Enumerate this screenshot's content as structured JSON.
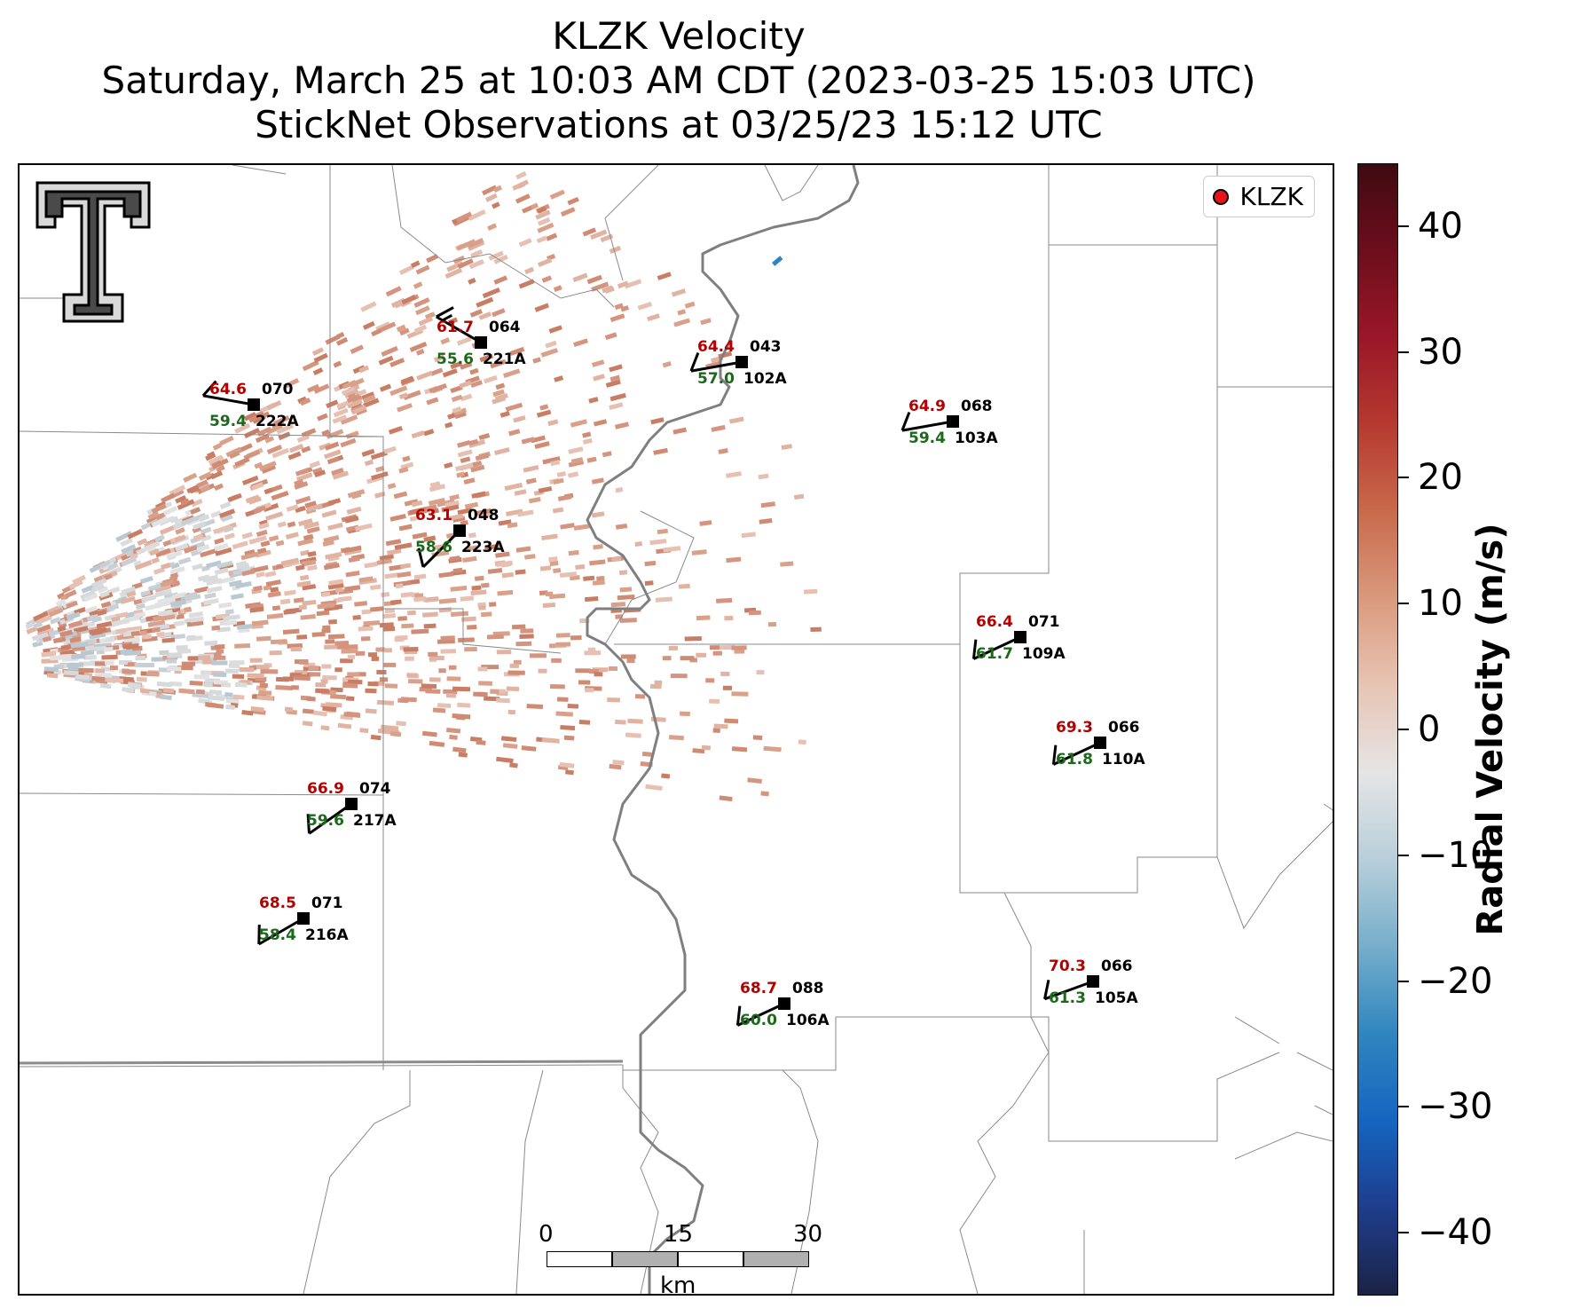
{
  "title": {
    "line1": "KLZK Velocity",
    "line2": "Saturday, March 25 at 10:03 AM CDT (2023-03-25 15:03 UTC)",
    "line3": "StickNet Observations at 03/25/23 15:12 UTC"
  },
  "legend": {
    "label": "KLZK",
    "marker_color": "#e8121b"
  },
  "colorbar": {
    "title": "Radial Velocity (m/s)",
    "ticks": [
      "40",
      "30",
      "20",
      "10",
      "0",
      "−10",
      "−20",
      "−30",
      "−40"
    ],
    "range": [
      -45,
      45
    ],
    "colors": [
      "#1b2345",
      "#1f3d8c",
      "#1565c0",
      "#2f86be",
      "#76aecb",
      "#b8cfda",
      "#e5e5e5",
      "#e7c5b4",
      "#d99a7d",
      "#c96a4c",
      "#b53a30",
      "#9a1728",
      "#6d0e1c",
      "#3f0a12"
    ]
  },
  "scalebar": {
    "ticks": [
      "0",
      "15",
      "30"
    ],
    "unit": "km"
  },
  "stations": [
    {
      "id": "221A",
      "temp": "61.7",
      "dew": "55.6",
      "pres": "064",
      "wind_dir": 300,
      "wind_kts": 15
    },
    {
      "id": "222A",
      "temp": "64.6",
      "dew": "59.4",
      "pres": "070",
      "wind_dir": 280,
      "wind_kts": 10
    },
    {
      "id": "102A",
      "temp": "64.4",
      "dew": "57.0",
      "pres": "043",
      "wind_dir": 260,
      "wind_kts": 10
    },
    {
      "id": "103A",
      "temp": "64.9",
      "dew": "59.4",
      "pres": "068",
      "wind_dir": 260,
      "wind_kts": 10
    },
    {
      "id": "223A",
      "temp": "63.1",
      "dew": "58.6",
      "pres": "048",
      "wind_dir": 225,
      "wind_kts": 10
    },
    {
      "id": "109A",
      "temp": "66.4",
      "dew": "61.7",
      "pres": "071",
      "wind_dir": 245,
      "wind_kts": 10
    },
    {
      "id": "110A",
      "temp": "69.3",
      "dew": "61.8",
      "pres": "066",
      "wind_dir": 245,
      "wind_kts": 10
    },
    {
      "id": "217A",
      "temp": "66.9",
      "dew": "59.6",
      "pres": "074",
      "wind_dir": 235,
      "wind_kts": 10
    },
    {
      "id": "216A",
      "temp": "68.5",
      "dew": "58.4",
      "pres": "071",
      "wind_dir": 240,
      "wind_kts": 10
    },
    {
      "id": "106A",
      "temp": "68.7",
      "dew": "60.0",
      "pres": "088",
      "wind_dir": 245,
      "wind_kts": 10
    },
    {
      "id": "105A",
      "temp": "70.3",
      "dew": "61.3",
      "pres": "066",
      "wind_dir": 250,
      "wind_kts": 10
    }
  ]
}
